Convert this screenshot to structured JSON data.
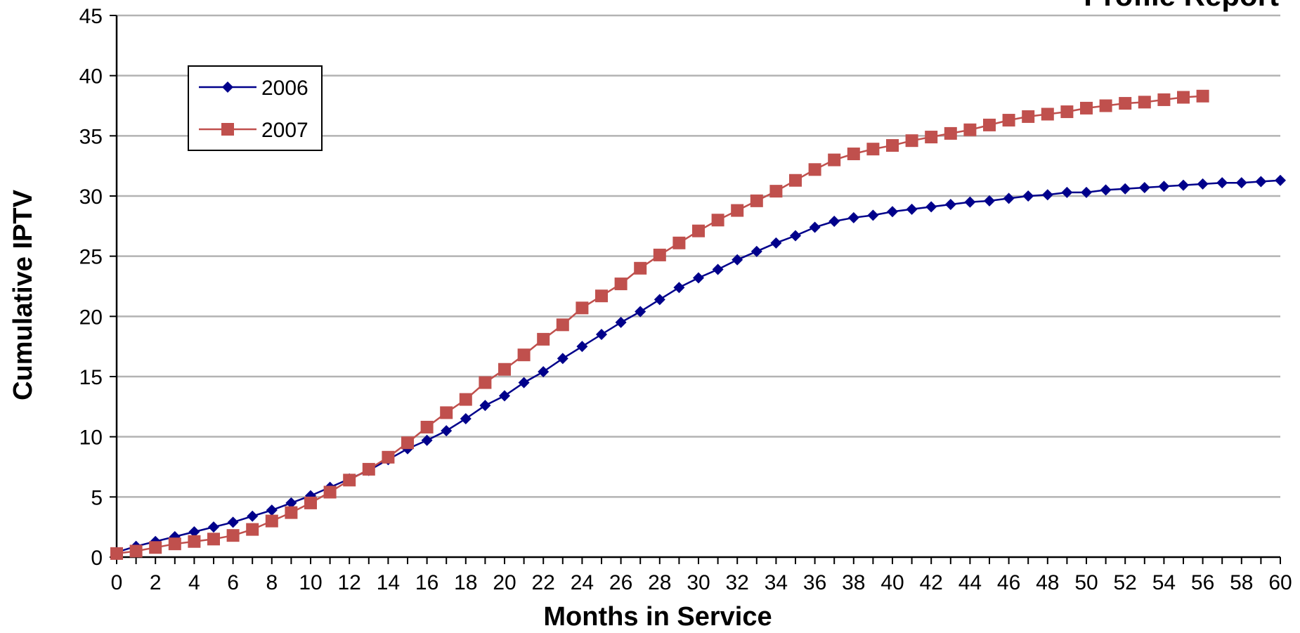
{
  "chart_data": {
    "type": "line",
    "title": "Profile Report",
    "xlabel": "Months in Service",
    "ylabel": "Cumulative IPTV",
    "xlim": [
      0,
      60
    ],
    "ylim": [
      0,
      45
    ],
    "x_ticks": [
      0,
      2,
      4,
      6,
      8,
      10,
      12,
      14,
      16,
      18,
      20,
      22,
      24,
      26,
      28,
      30,
      32,
      34,
      36,
      38,
      40,
      42,
      44,
      46,
      48,
      50,
      52,
      54,
      56,
      58,
      60
    ],
    "y_ticks": [
      0,
      5,
      10,
      15,
      20,
      25,
      30,
      35,
      40,
      45
    ],
    "grid": "horizontal",
    "legend": "top-left",
    "series": [
      {
        "name": "2006",
        "color": "#00008b",
        "marker": "diamond",
        "x": [
          0,
          1,
          2,
          3,
          4,
          5,
          6,
          7,
          8,
          9,
          10,
          11,
          12,
          13,
          14,
          15,
          16,
          17,
          18,
          19,
          20,
          21,
          22,
          23,
          24,
          25,
          26,
          27,
          28,
          29,
          30,
          31,
          32,
          33,
          34,
          35,
          36,
          37,
          38,
          39,
          40,
          41,
          42,
          43,
          44,
          45,
          46,
          47,
          48,
          49,
          50,
          51,
          52,
          53,
          54,
          55,
          56,
          57,
          58,
          59,
          60
        ],
        "values": [
          0.4,
          0.9,
          1.3,
          1.7,
          2.1,
          2.5,
          2.9,
          3.4,
          3.9,
          4.5,
          5.1,
          5.8,
          6.5,
          7.2,
          8.1,
          9.0,
          9.7,
          10.5,
          11.5,
          12.6,
          13.4,
          14.5,
          15.4,
          16.5,
          17.5,
          18.5,
          19.5,
          20.4,
          21.4,
          22.4,
          23.2,
          23.9,
          24.7,
          25.4,
          26.1,
          26.7,
          27.4,
          27.9,
          28.2,
          28.4,
          28.7,
          28.9,
          29.1,
          29.3,
          29.5,
          29.6,
          29.8,
          30.0,
          30.1,
          30.3,
          30.3,
          30.5,
          30.6,
          30.7,
          30.8,
          30.9,
          31.0,
          31.1,
          31.1,
          31.2,
          31.3
        ]
      },
      {
        "name": "2007",
        "color": "#c0504d",
        "marker": "square",
        "x": [
          0,
          1,
          2,
          3,
          4,
          5,
          6,
          7,
          8,
          9,
          10,
          11,
          12,
          13,
          14,
          15,
          16,
          17,
          18,
          19,
          20,
          21,
          22,
          23,
          24,
          25,
          26,
          27,
          28,
          29,
          30,
          31,
          32,
          33,
          34,
          35,
          36,
          37,
          38,
          39,
          40,
          41,
          42,
          43,
          44,
          45,
          46,
          47,
          48,
          49,
          50,
          51,
          52,
          53,
          54,
          55,
          56
        ],
        "values": [
          0.3,
          0.5,
          0.8,
          1.1,
          1.3,
          1.5,
          1.8,
          2.3,
          3.0,
          3.7,
          4.5,
          5.4,
          6.4,
          7.3,
          8.3,
          9.5,
          10.8,
          12.0,
          13.1,
          14.5,
          15.6,
          16.8,
          18.1,
          19.3,
          20.7,
          21.7,
          22.7,
          24.0,
          25.1,
          26.1,
          27.1,
          28.0,
          28.8,
          29.6,
          30.4,
          31.3,
          32.2,
          33.0,
          33.5,
          33.9,
          34.2,
          34.6,
          34.9,
          35.2,
          35.5,
          35.9,
          36.3,
          36.6,
          36.8,
          37.0,
          37.3,
          37.5,
          37.7,
          37.8,
          38.0,
          38.2,
          38.3
        ]
      }
    ]
  }
}
